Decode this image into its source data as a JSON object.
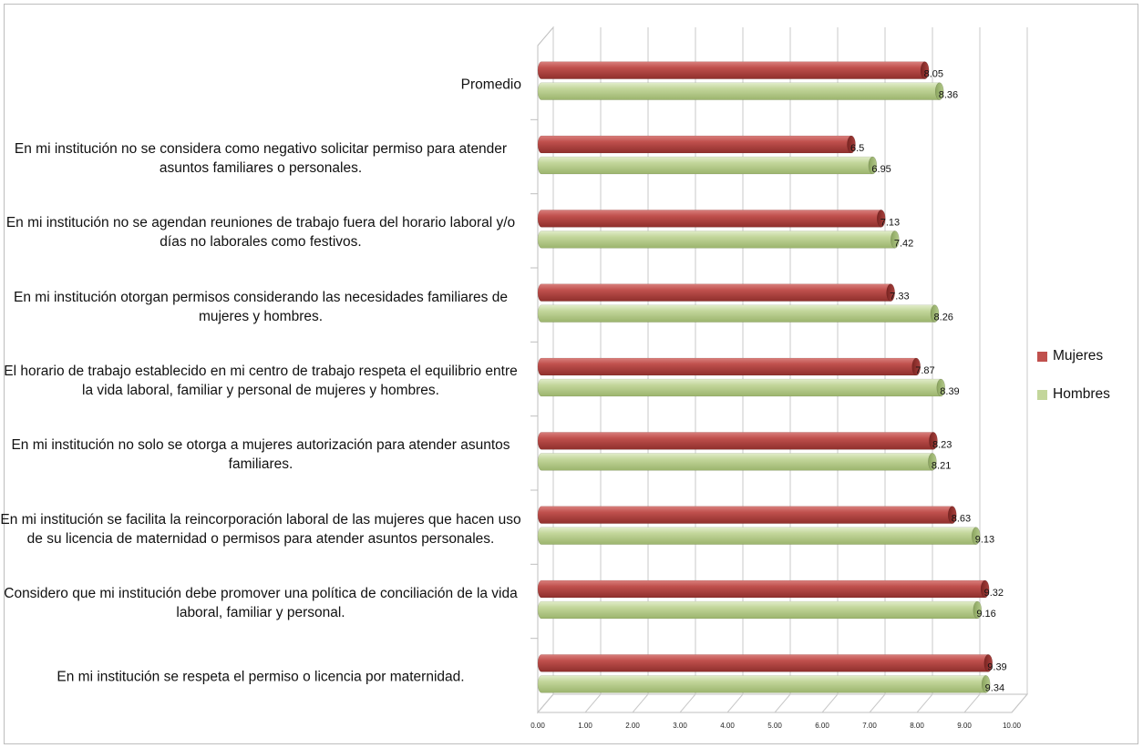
{
  "chart_data": {
    "type": "bar",
    "orientation": "horizontal",
    "categories": [
      "Promedio",
      "En mi institución no se considera como negativo solicitar permiso para atender asuntos familiares o personales.",
      "En mi institución no se agendan reuniones de trabajo fuera del horario laboral y/o días no laborales como festivos.",
      "En mi institución otorgan permisos considerando las necesidades familiares de mujeres y hombres.",
      "El horario de trabajo establecido en mi centro de trabajo respeta el equilibrio entre la vida laboral, familiar y personal de mujeres y hombres.",
      "En mi institución no solo se otorga a mujeres autorización para atender asuntos familiares.",
      "En mi institución se facilita la reincorporación laboral de las mujeres que hacen uso de su licencia de maternidad o permisos para atender asuntos personales.",
      "Considero que mi institución debe promover una política de conciliación de la vida laboral, familiar y personal.",
      "En mi institución se respeta el permiso o licencia por maternidad."
    ],
    "series": [
      {
        "name": "Mujeres",
        "color": "#c0504d",
        "values": [
          8.05,
          6.5,
          7.13,
          7.33,
          7.87,
          8.23,
          8.63,
          9.32,
          9.39
        ],
        "labels": [
          "8.05",
          "6.5",
          "7.13",
          "7.33",
          "7.87",
          "8.23",
          "8.63",
          "9.32",
          "9.39"
        ]
      },
      {
        "name": "Hombres",
        "color": "#c3d69b",
        "values": [
          8.36,
          6.95,
          7.42,
          8.26,
          8.39,
          8.21,
          9.13,
          9.16,
          9.34
        ],
        "labels": [
          "8.36",
          "6.95",
          "7.42",
          "8.26",
          "8.39",
          "8.21",
          "9.13",
          "9.16",
          "9.34"
        ]
      }
    ],
    "xlim": [
      0,
      10
    ],
    "xticks": [
      "0.00",
      "1.00",
      "2.00",
      "3.00",
      "4.00",
      "5.00",
      "6.00",
      "7.00",
      "8.00",
      "9.00",
      "10.00"
    ],
    "grid": true,
    "legend": "right"
  }
}
